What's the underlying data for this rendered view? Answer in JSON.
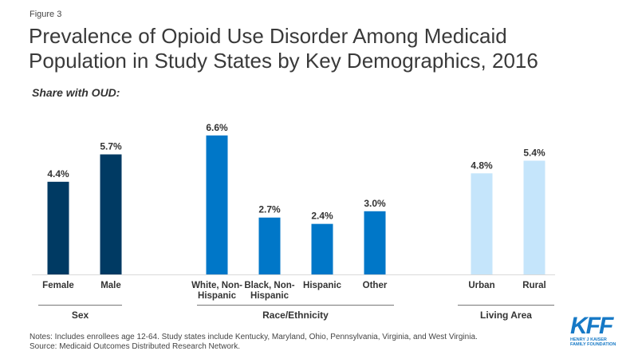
{
  "figure_label": "Figure 3",
  "title": "Prevalence of Opioid Use Disorder Among Medicaid Population in Study States by Key Demographics, 2016",
  "subtitle": "Share with OUD:",
  "notes": "Notes: Includes enrollees age 12-64. Study states include Kentucky, Maryland, Ohio, Pennsylvania, Virginia, and West Virginia.",
  "source": "Source: Medicaid Outcomes Distributed Research Network.",
  "logo": {
    "name": "KFF",
    "line1": "HENRY J KAISER",
    "line2": "FAMILY FOUNDATION"
  },
  "colors": {
    "sex": "#003a63",
    "race": "#0077c8",
    "area": "#c5e5fb",
    "logo": "#1679c6"
  },
  "chart_data": {
    "type": "bar",
    "title": "Prevalence of Opioid Use Disorder Among Medicaid Population in Study States by Key Demographics, 2016",
    "ylabel": "Share with OUD",
    "xlabel": "",
    "ylim": [
      0,
      7
    ],
    "grid": false,
    "groups": [
      {
        "name": "Sex",
        "color_key": "sex",
        "categories": [
          "Female",
          "Male"
        ],
        "values": [
          4.4,
          5.7
        ],
        "labels": [
          "4.4%",
          "5.7%"
        ]
      },
      {
        "name": "Race/Ethnicity",
        "color_key": "race",
        "categories": [
          "White, Non-Hispanic",
          "Black, Non-Hispanic",
          "Hispanic",
          "Other"
        ],
        "values": [
          6.6,
          2.7,
          2.4,
          3.0
        ],
        "labels": [
          "6.6%",
          "2.7%",
          "2.4%",
          "3.0%"
        ]
      },
      {
        "name": "Living Area",
        "color_key": "area",
        "categories": [
          "Urban",
          "Rural"
        ],
        "values": [
          4.8,
          5.4
        ],
        "labels": [
          "4.8%",
          "5.4%"
        ]
      }
    ]
  }
}
